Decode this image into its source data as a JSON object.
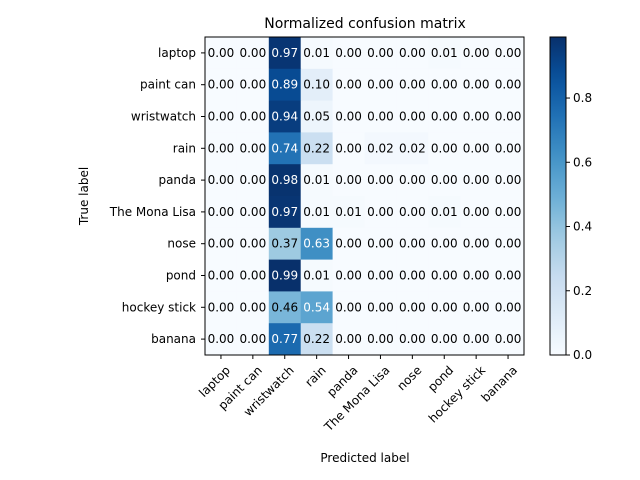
{
  "chart_data": {
    "type": "heatmap",
    "title": "Normalized confusion matrix",
    "xlabel": "Predicted label",
    "ylabel": "True label",
    "rows": [
      "laptop",
      "paint can",
      "wristwatch",
      "rain",
      "panda",
      "The Mona Lisa",
      "nose",
      "pond",
      "hockey stick",
      "banana"
    ],
    "columns": [
      "laptop",
      "paint can",
      "wristwatch",
      "rain",
      "panda",
      "The Mona Lisa",
      "nose",
      "pond",
      "hockey stick",
      "banana"
    ],
    "values": [
      [
        0.0,
        0.0,
        0.97,
        0.01,
        0.0,
        0.0,
        0.0,
        0.01,
        0.0,
        0.0
      ],
      [
        0.0,
        0.0,
        0.89,
        0.1,
        0.0,
        0.0,
        0.0,
        0.0,
        0.0,
        0.0
      ],
      [
        0.0,
        0.0,
        0.94,
        0.05,
        0.0,
        0.0,
        0.0,
        0.0,
        0.0,
        0.0
      ],
      [
        0.0,
        0.0,
        0.74,
        0.22,
        0.0,
        0.02,
        0.02,
        0.0,
        0.0,
        0.0
      ],
      [
        0.0,
        0.0,
        0.98,
        0.01,
        0.0,
        0.0,
        0.0,
        0.0,
        0.0,
        0.0
      ],
      [
        0.0,
        0.0,
        0.97,
        0.01,
        0.01,
        0.0,
        0.0,
        0.01,
        0.0,
        0.0
      ],
      [
        0.0,
        0.0,
        0.37,
        0.63,
        0.0,
        0.0,
        0.0,
        0.0,
        0.0,
        0.0
      ],
      [
        0.0,
        0.0,
        0.99,
        0.01,
        0.0,
        0.0,
        0.0,
        0.0,
        0.0,
        0.0
      ],
      [
        0.0,
        0.0,
        0.46,
        0.54,
        0.0,
        0.0,
        0.0,
        0.0,
        0.0,
        0.0
      ],
      [
        0.0,
        0.0,
        0.77,
        0.22,
        0.0,
        0.0,
        0.0,
        0.0,
        0.0,
        0.0
      ]
    ],
    "value_range": [
      0,
      0.99
    ],
    "colormap": "Blues",
    "colorbar_ticks": [
      "0.0",
      "0.2",
      "0.4",
      "0.6",
      "0.8"
    ],
    "colorbar_tick_values": [
      0.0,
      0.2,
      0.4,
      0.6,
      0.8
    ],
    "grid": false
  }
}
